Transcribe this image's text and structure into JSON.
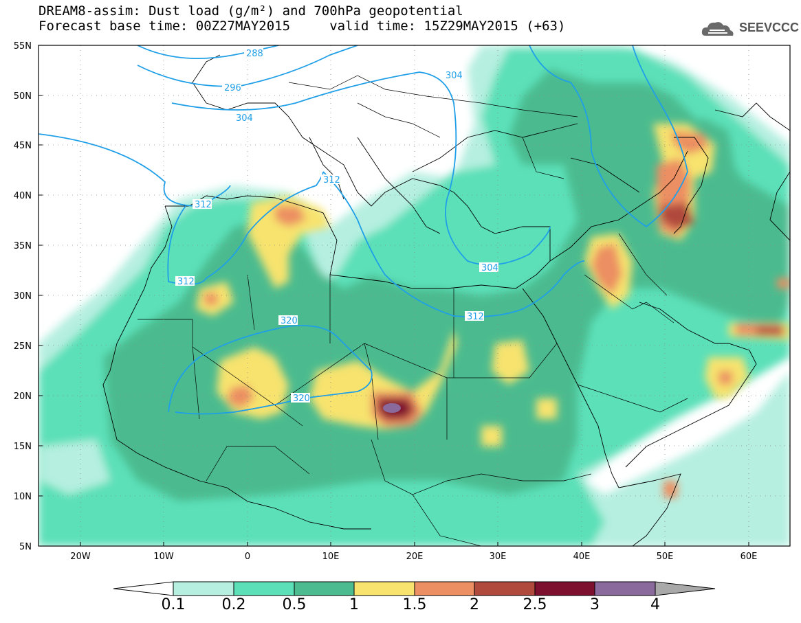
{
  "title": {
    "line1": "DREAM8-assim: Dust load (g/m²) and 700hPa geopotential",
    "line2": "Forecast base time: 00Z27MAY2015     valid time: 15Z29MAY2015 (+63)"
  },
  "logo": {
    "text": "SEEVCCC",
    "icon": "cloud-icon"
  },
  "map": {
    "region": {
      "lon_min": -25,
      "lon_max": 65,
      "lat_min": 5,
      "lat_max": 55
    },
    "lat_labels": [
      "55N",
      "50N",
      "45N",
      "40N",
      "35N",
      "30N",
      "25N",
      "20N",
      "15N",
      "10N",
      "5N"
    ],
    "lon_labels": [
      "20W",
      "10W",
      "0",
      "10E",
      "20E",
      "30E",
      "40E",
      "50E",
      "60E"
    ],
    "contour_labels": [
      "288",
      "296",
      "304",
      "304",
      "304",
      "312",
      "312",
      "312",
      "312",
      "320",
      "320"
    ],
    "colors": {
      "land": "#ffffff",
      "contour": "#1f9fe8",
      "border": "#000000"
    }
  },
  "colorbar": {
    "ticks": [
      "0.1",
      "0.2",
      "0.5",
      "1",
      "1.5",
      "2",
      "2.5",
      "3",
      "4"
    ],
    "colors": [
      "#ffffff",
      "#b6efe0",
      "#5ce0b8",
      "#4cbb8f",
      "#f7e36e",
      "#ec8f62",
      "#b04a3c",
      "#7d0f2f",
      "#8a6a9c",
      "#a9a9a9"
    ]
  }
}
